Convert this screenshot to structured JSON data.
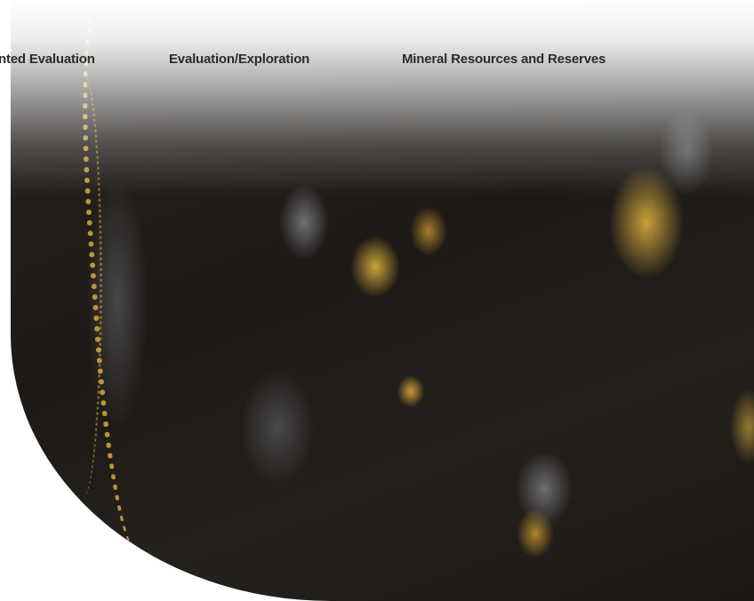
{
  "nav": {
    "items": [
      {
        "label": "nted Evaluation"
      },
      {
        "label": "Evaluation/Exploration"
      },
      {
        "label": "Mineral Resources and Reserves"
      }
    ]
  },
  "hero": {
    "image": "gold-ore-rock-texture",
    "colors": {
      "rock": "#1c1916",
      "gold": "#d4a83c",
      "grey": "#8c8c91"
    }
  }
}
